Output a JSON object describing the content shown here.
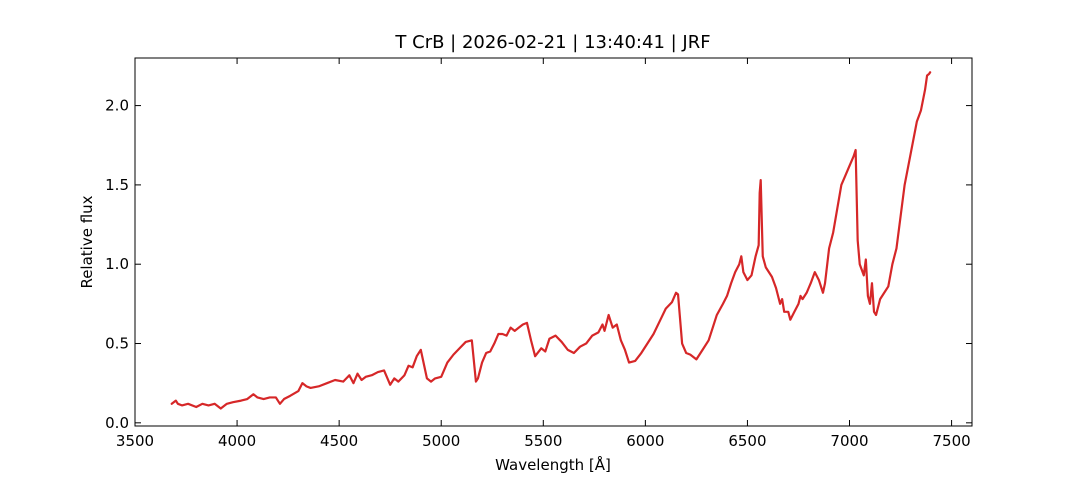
{
  "chart_data": {
    "type": "line",
    "title": "T CrB | 2026-02-21 | 13:40:41 | JRF",
    "xlabel": "Wavelength [Å]",
    "ylabel": "Relative flux",
    "xlim": [
      3500,
      7600
    ],
    "ylim": [
      -0.02,
      2.3
    ],
    "xticks": [
      3500,
      4000,
      4500,
      5000,
      5500,
      6000,
      6500,
      7000,
      7500
    ],
    "yticks": [
      0.0,
      0.5,
      1.0,
      1.5,
      2.0
    ],
    "xtick_labels": [
      "3500",
      "4000",
      "4500",
      "5000",
      "5500",
      "6000",
      "6500",
      "7000",
      "7500"
    ],
    "ytick_labels": [
      "0.0",
      "0.5",
      "1.0",
      "1.5",
      "2.0"
    ],
    "grid": false,
    "line_color": "#d62728",
    "series": [
      {
        "x": [
          3680,
          3700,
          3710,
          3730,
          3760,
          3800,
          3830,
          3860,
          3890,
          3920,
          3950,
          3980,
          4020,
          4050,
          4080,
          4100,
          4130,
          4160,
          4190,
          4210,
          4230,
          4260,
          4300,
          4320,
          4340,
          4360,
          4400,
          4440,
          4480,
          4520,
          4550,
          4570,
          4590,
          4610,
          4630,
          4660,
          4690,
          4720,
          4750,
          4770,
          4790,
          4820,
          4840,
          4860,
          4880,
          4900,
          4930,
          4950,
          4970,
          5000,
          5030,
          5060,
          5090,
          5120,
          5150,
          5170,
          5180,
          5200,
          5220,
          5240,
          5260,
          5280,
          5300,
          5320,
          5340,
          5360,
          5380,
          5400,
          5420,
          5440,
          5460,
          5490,
          5510,
          5530,
          5560,
          5590,
          5620,
          5650,
          5680,
          5710,
          5740,
          5770,
          5790,
          5800,
          5820,
          5840,
          5860,
          5880,
          5900,
          5920,
          5950,
          5980,
          6010,
          6040,
          6070,
          6100,
          6130,
          6150,
          6160,
          6180,
          6200,
          6220,
          6250,
          6280,
          6310,
          6330,
          6350,
          6380,
          6400,
          6420,
          6440,
          6460,
          6470,
          6480,
          6500,
          6520,
          6540,
          6555,
          6560,
          6565,
          6575,
          6590,
          6620,
          6640,
          6660,
          6670,
          6680,
          6700,
          6710,
          6730,
          6750,
          6760,
          6770,
          6790,
          6800,
          6810,
          6830,
          6850,
          6870,
          6880,
          6900,
          6920,
          6940,
          6960,
          6980,
          7000,
          7020,
          7030,
          7040,
          7050,
          7070,
          7080,
          7090,
          7100,
          7110,
          7120,
          7130,
          7150,
          7170,
          7190,
          7210,
          7230,
          7250,
          7270,
          7300,
          7330,
          7350,
          7370,
          7380,
          7390,
          7395
        ],
        "y": [
          0.12,
          0.14,
          0.12,
          0.11,
          0.12,
          0.1,
          0.12,
          0.11,
          0.12,
          0.09,
          0.12,
          0.13,
          0.14,
          0.15,
          0.18,
          0.16,
          0.15,
          0.16,
          0.16,
          0.12,
          0.15,
          0.17,
          0.2,
          0.25,
          0.23,
          0.22,
          0.23,
          0.25,
          0.27,
          0.26,
          0.3,
          0.25,
          0.31,
          0.27,
          0.29,
          0.3,
          0.32,
          0.33,
          0.24,
          0.28,
          0.26,
          0.3,
          0.36,
          0.35,
          0.42,
          0.46,
          0.28,
          0.26,
          0.28,
          0.29,
          0.38,
          0.43,
          0.47,
          0.51,
          0.52,
          0.26,
          0.28,
          0.38,
          0.44,
          0.45,
          0.5,
          0.56,
          0.56,
          0.55,
          0.6,
          0.58,
          0.6,
          0.62,
          0.63,
          0.52,
          0.42,
          0.47,
          0.45,
          0.53,
          0.55,
          0.51,
          0.46,
          0.44,
          0.48,
          0.5,
          0.55,
          0.57,
          0.62,
          0.58,
          0.68,
          0.6,
          0.62,
          0.52,
          0.46,
          0.38,
          0.39,
          0.44,
          0.5,
          0.56,
          0.64,
          0.72,
          0.76,
          0.82,
          0.81,
          0.5,
          0.44,
          0.43,
          0.4,
          0.46,
          0.52,
          0.6,
          0.68,
          0.75,
          0.8,
          0.88,
          0.95,
          1.0,
          1.05,
          0.95,
          0.9,
          0.93,
          1.05,
          1.12,
          1.45,
          1.53,
          1.05,
          0.98,
          0.92,
          0.85,
          0.75,
          0.78,
          0.7,
          0.7,
          0.65,
          0.7,
          0.75,
          0.8,
          0.78,
          0.82,
          0.85,
          0.88,
          0.95,
          0.9,
          0.82,
          0.88,
          1.1,
          1.2,
          1.35,
          1.5,
          1.56,
          1.62,
          1.68,
          1.72,
          1.15,
          1.0,
          0.93,
          1.03,
          0.8,
          0.75,
          0.88,
          0.7,
          0.68,
          0.78,
          0.82,
          0.86,
          1.0,
          1.1,
          1.3,
          1.5,
          1.7,
          1.9,
          1.97,
          2.1,
          2.19,
          2.2,
          2.21
        ]
      }
    ]
  }
}
